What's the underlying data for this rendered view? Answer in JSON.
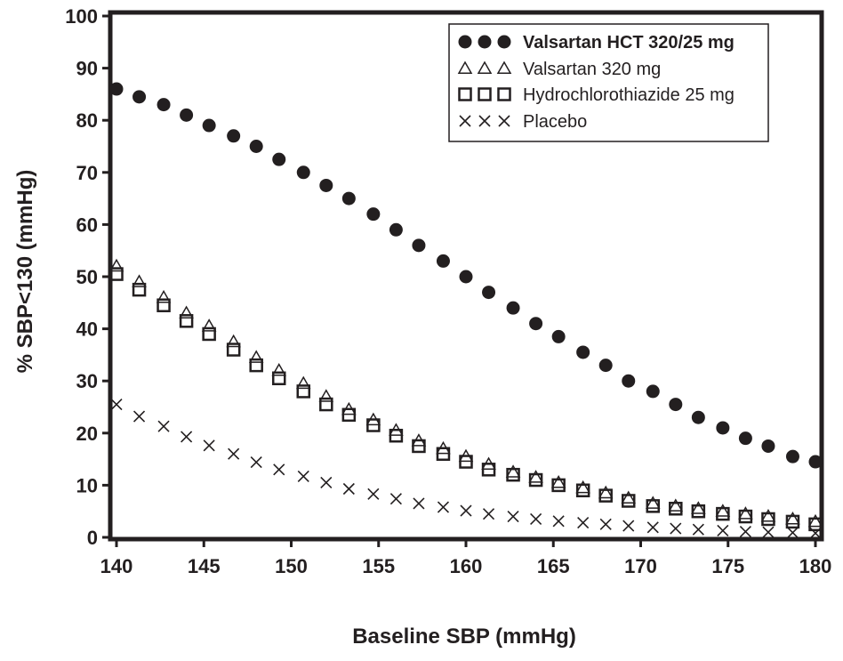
{
  "chart_data": {
    "type": "scatter",
    "xlabel": "Baseline SBP (mmHg)",
    "ylabel": "% SBP<130 (mmHg)",
    "xlim": [
      140,
      180
    ],
    "ylim": [
      0,
      100
    ],
    "x_ticks": [
      140,
      145,
      150,
      155,
      160,
      165,
      170,
      175,
      180
    ],
    "y_ticks": [
      0,
      10,
      20,
      30,
      40,
      50,
      60,
      70,
      80,
      90,
      100
    ],
    "grid": false,
    "legend_position": "top-right",
    "x": [
      140,
      141.3,
      142.7,
      144,
      145.3,
      146.7,
      148,
      149.3,
      150.7,
      152,
      153.3,
      154.7,
      156,
      157.3,
      158.7,
      160,
      161.3,
      162.7,
      164,
      165.3,
      166.7,
      168,
      169.3,
      170.7,
      172,
      173.3,
      174.7,
      176,
      177.3,
      178.7,
      180
    ],
    "series": [
      {
        "name": "Valsartan HCT 320/25 mg",
        "marker": "filled-circle",
        "values": [
          86,
          84.5,
          83,
          81,
          79,
          77,
          75,
          72.5,
          70,
          67.5,
          65,
          62,
          59,
          56,
          53,
          50,
          47,
          44,
          41,
          38.5,
          35.5,
          33,
          30,
          28,
          25.5,
          23,
          21,
          19,
          17.5,
          15.5,
          14.5
        ]
      },
      {
        "name": "Valsartan 320 mg",
        "marker": "open-triangle",
        "values": [
          52,
          49,
          46,
          43,
          40.5,
          37.5,
          34.5,
          32,
          29.5,
          27,
          24.5,
          22.5,
          20.5,
          18.5,
          17,
          15.5,
          14,
          12.5,
          11.5,
          10.5,
          9.5,
          8.5,
          7.5,
          6.5,
          6,
          5.5,
          5,
          4.5,
          4,
          3.5,
          3
        ]
      },
      {
        "name": "Hydrochlorothiazide 25 mg",
        "marker": "open-square",
        "values": [
          50.5,
          47.5,
          44.5,
          41.5,
          39,
          36,
          33,
          30.5,
          28,
          25.5,
          23.5,
          21.5,
          19.5,
          17.5,
          16,
          14.5,
          13,
          12,
          11,
          10,
          9,
          8,
          7,
          6,
          5.5,
          5,
          4.5,
          4,
          3.5,
          3,
          2.5
        ]
      },
      {
        "name": "Placebo",
        "marker": "x-mark",
        "values": [
          25.5,
          23.2,
          21.3,
          19.3,
          17.6,
          16,
          14.4,
          13,
          11.7,
          10.5,
          9.3,
          8.3,
          7.4,
          6.5,
          5.8,
          5.1,
          4.5,
          4,
          3.5,
          3.1,
          2.8,
          2.5,
          2.2,
          1.9,
          1.7,
          1.5,
          1.3,
          1.1,
          1,
          0.9,
          0.8
        ]
      }
    ],
    "colors": {
      "marker": "#231f20",
      "frame": "#231f20",
      "background": "#ffffff"
    }
  }
}
